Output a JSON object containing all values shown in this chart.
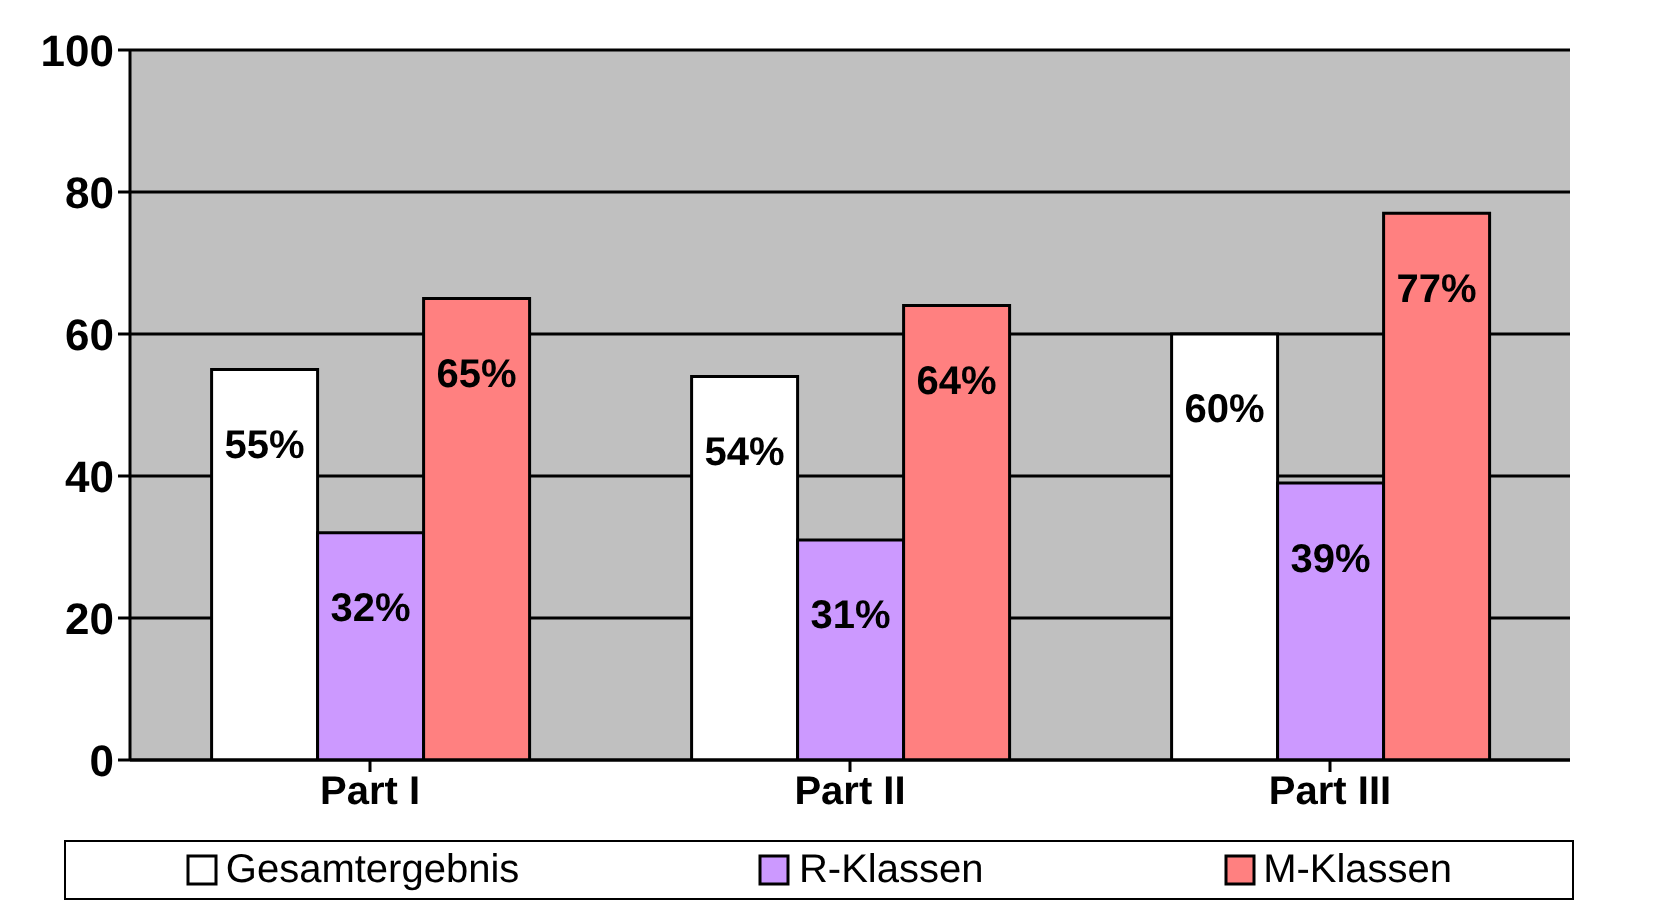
{
  "chart_data": {
    "type": "bar",
    "categories": [
      "Part I",
      "Part II",
      "Part III"
    ],
    "series": [
      {
        "name": "Gesamtergebnis",
        "color": "#ffffff",
        "values": [
          55,
          54,
          60
        ],
        "value_labels": [
          "55%",
          "54%",
          "60%"
        ]
      },
      {
        "name": "R-Klassen",
        "color": "#cc99ff",
        "values": [
          32,
          31,
          39
        ],
        "value_labels": [
          "32%",
          "31%",
          "39%"
        ]
      },
      {
        "name": "M-Klassen",
        "color": "#ff8080",
        "values": [
          65,
          64,
          77
        ],
        "value_labels": [
          "65%",
          "64%",
          "77%"
        ]
      }
    ],
    "ylim": [
      0,
      100
    ],
    "yticks": [
      0,
      20,
      40,
      60,
      80,
      100
    ],
    "grid": "y",
    "legend": "bottom"
  }
}
